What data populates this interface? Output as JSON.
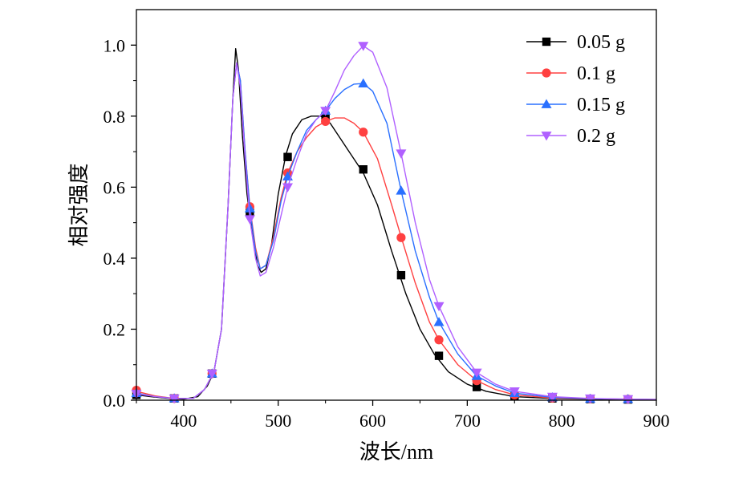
{
  "chart_data": {
    "type": "line",
    "title": "",
    "xlabel": "波长/nm",
    "ylabel": "相对强度",
    "xlim": [
      350,
      900
    ],
    "ylim": [
      0,
      1.1
    ],
    "xticks": [
      400,
      500,
      600,
      700,
      800,
      900
    ],
    "yticks": [
      0.0,
      0.2,
      0.4,
      0.6,
      0.8,
      1.0
    ],
    "xtick_labels": [
      "400",
      "500",
      "600",
      "700",
      "800",
      "900"
    ],
    "ytick_labels": [
      "0.0",
      "0.2",
      "0.4",
      "0.6",
      "0.8",
      "1.0"
    ],
    "grid": false,
    "legend_position": "top-right",
    "series": [
      {
        "name": "0.05 g",
        "color": "#000000",
        "marker": "square",
        "curve": [
          [
            350,
            0.015
          ],
          [
            365,
            0.01
          ],
          [
            380,
            0.006
          ],
          [
            400,
            0.003
          ],
          [
            415,
            0.01
          ],
          [
            425,
            0.04
          ],
          [
            432,
            0.08
          ],
          [
            440,
            0.2
          ],
          [
            447,
            0.55
          ],
          [
            452,
            0.85
          ],
          [
            455,
            0.99
          ],
          [
            458,
            0.93
          ],
          [
            462,
            0.75
          ],
          [
            467,
            0.58
          ],
          [
            472,
            0.48
          ],
          [
            478,
            0.38
          ],
          [
            482,
            0.36
          ],
          [
            487,
            0.37
          ],
          [
            493,
            0.44
          ],
          [
            500,
            0.58
          ],
          [
            508,
            0.69
          ],
          [
            515,
            0.75
          ],
          [
            525,
            0.79
          ],
          [
            535,
            0.8
          ],
          [
            545,
            0.8
          ],
          [
            555,
            0.78
          ],
          [
            565,
            0.74
          ],
          [
            575,
            0.7
          ],
          [
            590,
            0.64
          ],
          [
            605,
            0.55
          ],
          [
            620,
            0.42
          ],
          [
            635,
            0.3
          ],
          [
            650,
            0.2
          ],
          [
            665,
            0.13
          ],
          [
            680,
            0.08
          ],
          [
            700,
            0.045
          ],
          [
            720,
            0.025
          ],
          [
            750,
            0.01
          ],
          [
            790,
            0.005
          ],
          [
            830,
            0.003
          ],
          [
            870,
            0.002
          ],
          [
            900,
            0.001
          ]
        ],
        "points": [
          [
            350,
            0.015
          ],
          [
            390,
            0.005
          ],
          [
            430,
            0.075
          ],
          [
            470,
            0.53
          ],
          [
            510,
            0.685
          ],
          [
            550,
            0.8
          ],
          [
            590,
            0.65
          ],
          [
            630,
            0.352
          ],
          [
            670,
            0.125
          ],
          [
            710,
            0.037
          ],
          [
            750,
            0.012
          ],
          [
            790,
            0.005
          ],
          [
            830,
            0.003
          ],
          [
            870,
            0.002
          ]
        ]
      },
      {
        "name": "0.1 g",
        "color": "#ff4040",
        "marker": "circle",
        "curve": [
          [
            350,
            0.025
          ],
          [
            370,
            0.012
          ],
          [
            390,
            0.005
          ],
          [
            410,
            0.005
          ],
          [
            422,
            0.03
          ],
          [
            432,
            0.08
          ],
          [
            440,
            0.2
          ],
          [
            447,
            0.55
          ],
          [
            452,
            0.85
          ],
          [
            456,
            0.95
          ],
          [
            460,
            0.9
          ],
          [
            465,
            0.7
          ],
          [
            470,
            0.545
          ],
          [
            476,
            0.43
          ],
          [
            481,
            0.37
          ],
          [
            487,
            0.38
          ],
          [
            495,
            0.46
          ],
          [
            503,
            0.57
          ],
          [
            510,
            0.64
          ],
          [
            520,
            0.7
          ],
          [
            530,
            0.74
          ],
          [
            540,
            0.77
          ],
          [
            550,
            0.785
          ],
          [
            560,
            0.795
          ],
          [
            570,
            0.795
          ],
          [
            580,
            0.78
          ],
          [
            590,
            0.755
          ],
          [
            605,
            0.68
          ],
          [
            620,
            0.55
          ],
          [
            630,
            0.46
          ],
          [
            645,
            0.33
          ],
          [
            660,
            0.22
          ],
          [
            670,
            0.17
          ],
          [
            690,
            0.1
          ],
          [
            710,
            0.055
          ],
          [
            730,
            0.03
          ],
          [
            750,
            0.015
          ],
          [
            790,
            0.006
          ],
          [
            830,
            0.004
          ],
          [
            870,
            0.003
          ],
          [
            900,
            0.002
          ]
        ],
        "points": [
          [
            350,
            0.028
          ],
          [
            390,
            0.005
          ],
          [
            430,
            0.075
          ],
          [
            470,
            0.545
          ],
          [
            510,
            0.64
          ],
          [
            550,
            0.785
          ],
          [
            590,
            0.755
          ],
          [
            630,
            0.458
          ],
          [
            670,
            0.17
          ],
          [
            710,
            0.055
          ],
          [
            750,
            0.015
          ],
          [
            790,
            0.006
          ],
          [
            830,
            0.004
          ],
          [
            870,
            0.003
          ]
        ]
      },
      {
        "name": "0.15 g",
        "color": "#2a70ff",
        "marker": "triangle-up",
        "curve": [
          [
            350,
            0.02
          ],
          [
            370,
            0.01
          ],
          [
            390,
            0.005
          ],
          [
            410,
            0.005
          ],
          [
            422,
            0.03
          ],
          [
            432,
            0.08
          ],
          [
            440,
            0.2
          ],
          [
            447,
            0.55
          ],
          [
            452,
            0.85
          ],
          [
            456,
            0.95
          ],
          [
            460,
            0.9
          ],
          [
            465,
            0.7
          ],
          [
            470,
            0.54
          ],
          [
            476,
            0.42
          ],
          [
            481,
            0.37
          ],
          [
            487,
            0.38
          ],
          [
            495,
            0.45
          ],
          [
            503,
            0.56
          ],
          [
            510,
            0.63
          ],
          [
            520,
            0.7
          ],
          [
            530,
            0.76
          ],
          [
            540,
            0.79
          ],
          [
            550,
            0.815
          ],
          [
            560,
            0.85
          ],
          [
            570,
            0.875
          ],
          [
            580,
            0.89
          ],
          [
            590,
            0.892
          ],
          [
            600,
            0.87
          ],
          [
            615,
            0.78
          ],
          [
            630,
            0.59
          ],
          [
            645,
            0.42
          ],
          [
            660,
            0.29
          ],
          [
            670,
            0.22
          ],
          [
            690,
            0.13
          ],
          [
            710,
            0.068
          ],
          [
            730,
            0.04
          ],
          [
            750,
            0.02
          ],
          [
            790,
            0.008
          ],
          [
            830,
            0.004
          ],
          [
            870,
            0.003
          ],
          [
            900,
            0.002
          ]
        ],
        "points": [
          [
            350,
            0.02
          ],
          [
            390,
            0.005
          ],
          [
            430,
            0.075
          ],
          [
            470,
            0.54
          ],
          [
            510,
            0.63
          ],
          [
            550,
            0.815
          ],
          [
            590,
            0.892
          ],
          [
            630,
            0.59
          ],
          [
            670,
            0.22
          ],
          [
            710,
            0.068
          ],
          [
            750,
            0.02
          ],
          [
            790,
            0.008
          ],
          [
            830,
            0.004
          ],
          [
            870,
            0.003
          ]
        ]
      },
      {
        "name": "0.2 g",
        "color": "#b060ff",
        "marker": "triangle-down",
        "curve": [
          [
            350,
            0.018
          ],
          [
            370,
            0.01
          ],
          [
            390,
            0.005
          ],
          [
            410,
            0.005
          ],
          [
            422,
            0.03
          ],
          [
            432,
            0.08
          ],
          [
            440,
            0.2
          ],
          [
            447,
            0.55
          ],
          [
            452,
            0.85
          ],
          [
            456,
            0.95
          ],
          [
            460,
            0.88
          ],
          [
            465,
            0.68
          ],
          [
            470,
            0.51
          ],
          [
            476,
            0.4
          ],
          [
            481,
            0.35
          ],
          [
            487,
            0.36
          ],
          [
            495,
            0.43
          ],
          [
            503,
            0.52
          ],
          [
            510,
            0.6
          ],
          [
            520,
            0.68
          ],
          [
            530,
            0.75
          ],
          [
            540,
            0.79
          ],
          [
            550,
            0.815
          ],
          [
            560,
            0.87
          ],
          [
            570,
            0.93
          ],
          [
            580,
            0.97
          ],
          [
            590,
            0.998
          ],
          [
            600,
            0.98
          ],
          [
            615,
            0.88
          ],
          [
            630,
            0.695
          ],
          [
            645,
            0.5
          ],
          [
            660,
            0.34
          ],
          [
            670,
            0.265
          ],
          [
            690,
            0.15
          ],
          [
            710,
            0.078
          ],
          [
            730,
            0.045
          ],
          [
            750,
            0.025
          ],
          [
            790,
            0.01
          ],
          [
            830,
            0.005
          ],
          [
            870,
            0.003
          ],
          [
            900,
            0.002
          ]
        ],
        "points": [
          [
            350,
            0.018
          ],
          [
            390,
            0.005
          ],
          [
            430,
            0.075
          ],
          [
            470,
            0.51
          ],
          [
            510,
            0.6
          ],
          [
            550,
            0.815
          ],
          [
            590,
            0.998
          ],
          [
            630,
            0.695
          ],
          [
            670,
            0.265
          ],
          [
            710,
            0.078
          ],
          [
            750,
            0.025
          ],
          [
            790,
            0.01
          ],
          [
            830,
            0.005
          ],
          [
            870,
            0.003
          ]
        ]
      }
    ]
  }
}
